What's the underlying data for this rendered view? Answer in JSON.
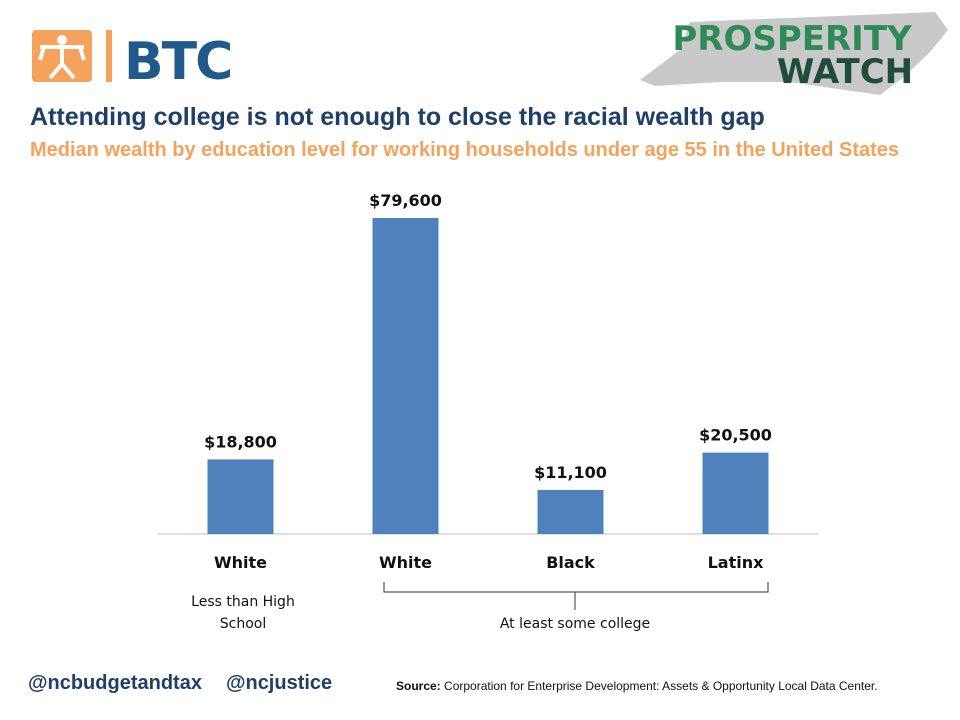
{
  "header": {
    "logo": "BTC",
    "brand": [
      "PROSPERITY",
      "WATCH"
    ]
  },
  "chart_data": {
    "type": "bar",
    "title": "Attending college is not enough to close the racial wealth gap",
    "subtitle": "Median wealth by education level for working households under age 55 in the United States",
    "categories": [
      "White",
      "White",
      "Black",
      "Latinx"
    ],
    "values": [
      18800,
      79600,
      11100,
      20500
    ],
    "value_labels": [
      "$18,800",
      "$79,600",
      "$11,100",
      "$20,500"
    ],
    "color": "#4f81bd",
    "groups": [
      "Less than High School",
      "At least some college"
    ]
  },
  "footer": {
    "handles": [
      "@ncbudgetandtax",
      "@ncjustice"
    ],
    "source_label": "Source:",
    "source": "Corporation for Enterprise Development: Assets & Opportunity Local Data Center."
  }
}
